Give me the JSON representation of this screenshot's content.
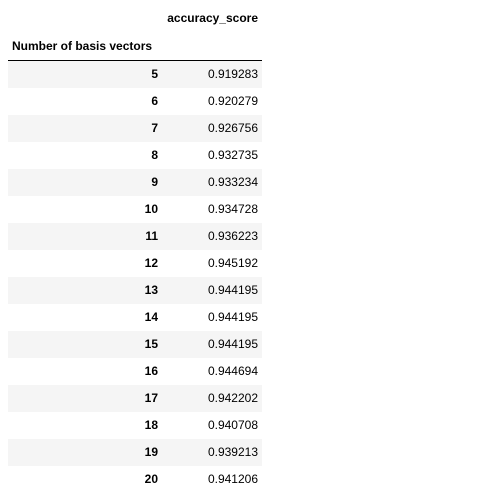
{
  "table": {
    "value_column": "accuracy_score",
    "index_name": "Number of basis vectors",
    "rows": [
      {
        "index": "5",
        "value": "0.919283"
      },
      {
        "index": "6",
        "value": "0.920279"
      },
      {
        "index": "7",
        "value": "0.926756"
      },
      {
        "index": "8",
        "value": "0.932735"
      },
      {
        "index": "9",
        "value": "0.933234"
      },
      {
        "index": "10",
        "value": "0.934728"
      },
      {
        "index": "11",
        "value": "0.936223"
      },
      {
        "index": "12",
        "value": "0.945192"
      },
      {
        "index": "13",
        "value": "0.944195"
      },
      {
        "index": "14",
        "value": "0.944195"
      },
      {
        "index": "15",
        "value": "0.944195"
      },
      {
        "index": "16",
        "value": "0.944694"
      },
      {
        "index": "17",
        "value": "0.942202"
      },
      {
        "index": "18",
        "value": "0.940708"
      },
      {
        "index": "19",
        "value": "0.939213"
      },
      {
        "index": "20",
        "value": "0.941206"
      }
    ]
  }
}
